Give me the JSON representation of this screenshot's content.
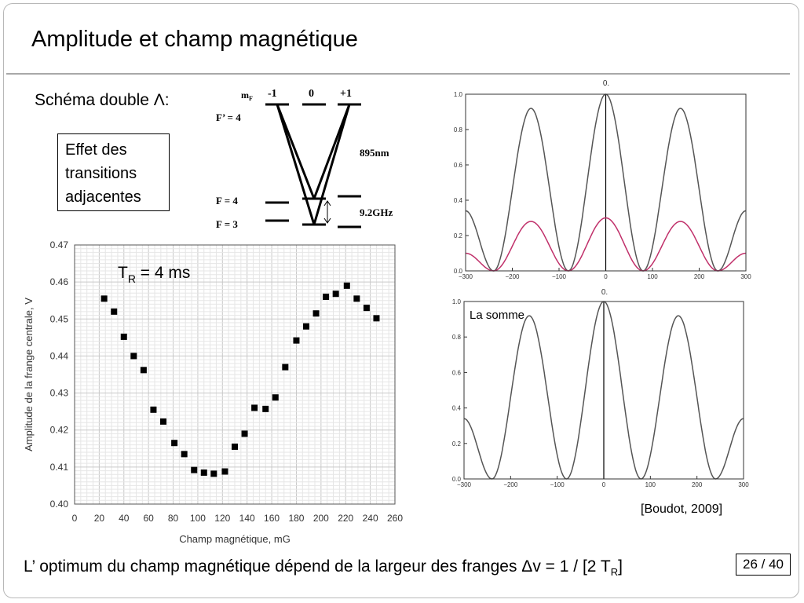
{
  "slide": {
    "title": "Amplitude et champ magnétique",
    "schema_label": "Schéma double Λ:",
    "box_text": [
      "Effet des",
      "transitions",
      "adjacentes"
    ],
    "tr_label": "T",
    "tr_sub": "R",
    "tr_value": " = 4 ms",
    "somme_label": "La somme",
    "citation": "[Boudot, 2009]",
    "page": "26 / 40",
    "bottom_pre": "L’ optimum du champ magnétique dépend de la largeur des franges Δv = 1 / [2 T",
    "bottom_sub": "R",
    "bottom_post": "]"
  },
  "level_diagram": {
    "mf_label": "m",
    "mf_sub": "F",
    "mf_values": [
      "-1",
      "0",
      "+1"
    ],
    "levels": [
      "F’ = 4",
      "F = 4",
      "F = 3"
    ],
    "wavelength": "895nm",
    "splitting": "9.2GHz"
  },
  "chart_data": [
    {
      "type": "scatter",
      "xlabel": "Champ magnétique, mG",
      "ylabel": "Amplitude de la frange centrale, V",
      "xlim": [
        0,
        260
      ],
      "ylim": [
        0.4,
        0.47
      ],
      "xticks": [
        0,
        20,
        40,
        60,
        80,
        100,
        120,
        140,
        160,
        180,
        200,
        220,
        240,
        260
      ],
      "yticks": [
        0.4,
        0.41,
        0.42,
        0.43,
        0.44,
        0.45,
        0.46,
        0.47
      ],
      "grid": true,
      "x": [
        24,
        32,
        40,
        48,
        56,
        64,
        72,
        81,
        89,
        97,
        105,
        113,
        122,
        130,
        138,
        146,
        155,
        163,
        171,
        180,
        188,
        196,
        204,
        212,
        221,
        229,
        237,
        245
      ],
      "y": [
        0.4555,
        0.452,
        0.4452,
        0.44,
        0.4362,
        0.4255,
        0.4223,
        0.4165,
        0.4135,
        0.4092,
        0.4085,
        0.4082,
        0.4088,
        0.4155,
        0.419,
        0.426,
        0.4257,
        0.4288,
        0.437,
        0.4442,
        0.448,
        0.4515,
        0.456,
        0.4568,
        0.459,
        0.4555,
        0.453,
        0.4502
      ]
    },
    {
      "type": "line",
      "title": "0.",
      "xlim": [
        -300,
        300
      ],
      "ylim": [
        0,
        1
      ],
      "xticks": [
        -300,
        -200,
        -100,
        0,
        100,
        200,
        300
      ],
      "yticks": [
        0.0,
        0.2,
        0.4,
        0.6,
        0.8,
        1.0
      ],
      "series": [
        {
          "color": "#555555",
          "peaks_x": [
            -155,
            0,
            155
          ],
          "peak_y": [
            0.92,
            1.0,
            0.92
          ],
          "zeros_x": [
            -240,
            -80,
            80,
            240
          ],
          "edge_y": 0.34
        },
        {
          "color": "#c0306a",
          "peaks_x": [
            -155,
            0,
            155
          ],
          "peak_y": [
            0.28,
            0.3,
            0.28
          ],
          "zeros_x": [
            -240,
            -80,
            80,
            240
          ],
          "edge_y": 0.1
        }
      ]
    },
    {
      "type": "line",
      "title": "0.",
      "xlim": [
        -300,
        300
      ],
      "ylim": [
        0,
        1
      ],
      "xticks": [
        -300,
        -200,
        -100,
        0,
        100,
        200,
        300
      ],
      "yticks": [
        0.0,
        0.2,
        0.4,
        0.6,
        0.8,
        1.0
      ],
      "series": [
        {
          "color": "#555555",
          "peaks_x": [
            -155,
            0,
            155
          ],
          "peak_y": [
            0.92,
            1.0,
            0.92
          ],
          "zeros_x": [
            -240,
            -80,
            80,
            240
          ],
          "edge_y": 0.34
        }
      ]
    }
  ]
}
